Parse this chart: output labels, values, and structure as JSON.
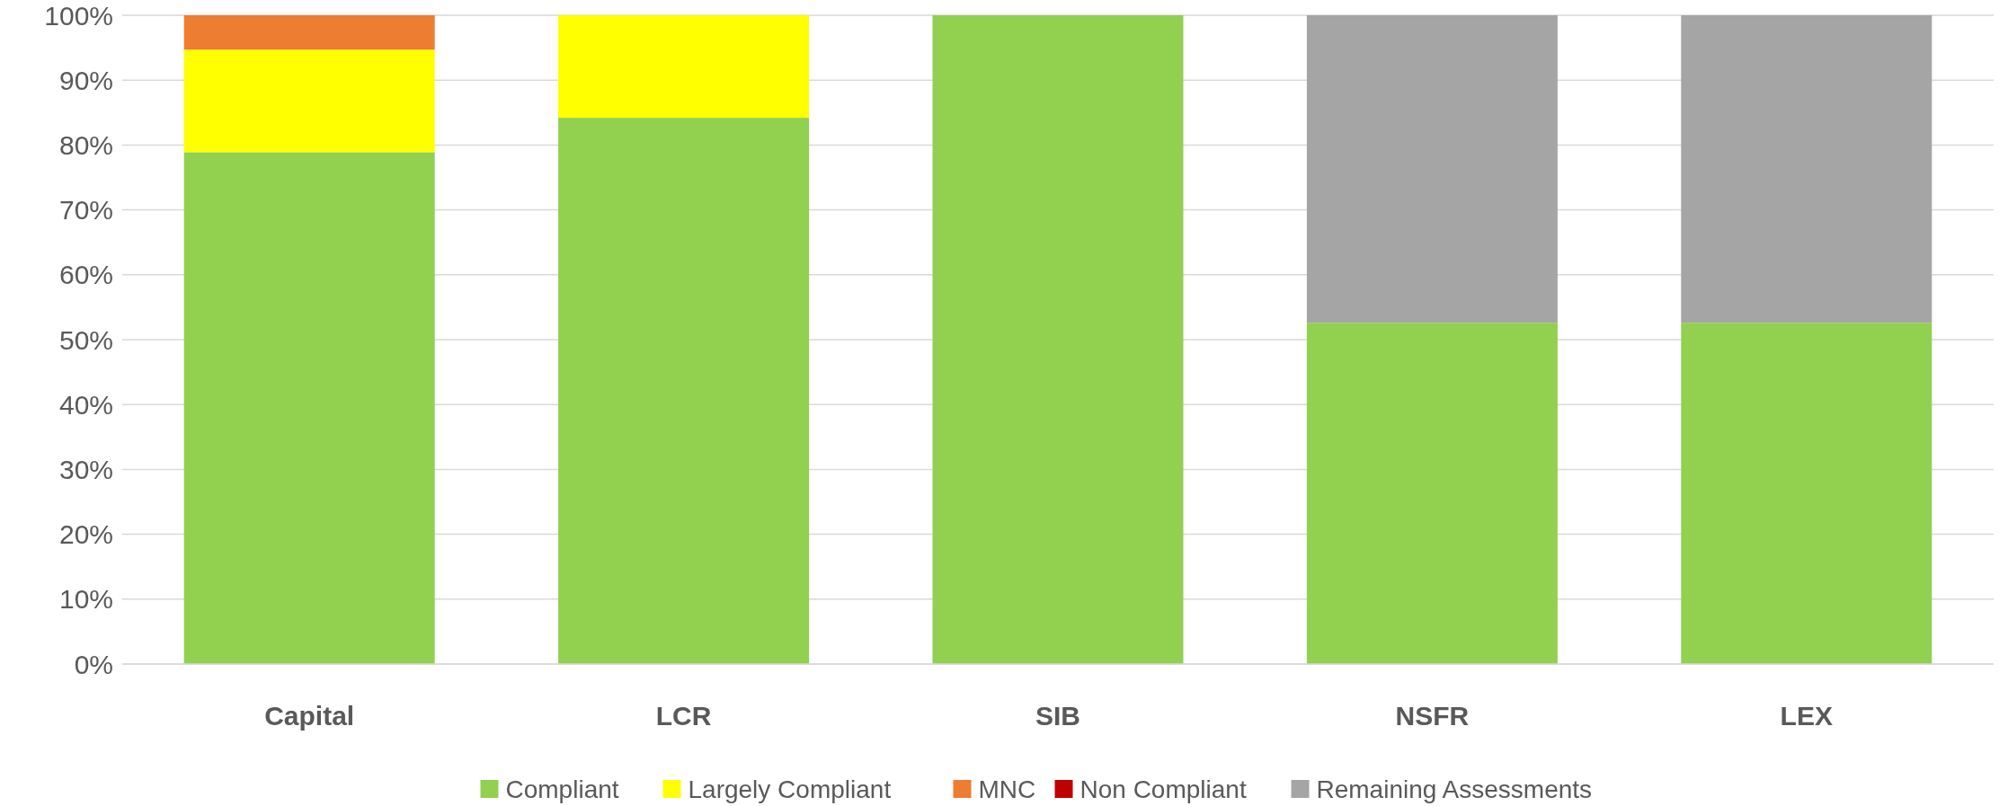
{
  "chart_data": {
    "type": "bar",
    "stacked": true,
    "categories": [
      "Capital",
      "LCR",
      "SIB",
      "NSFR",
      "LEX"
    ],
    "series": [
      {
        "name": "Compliant",
        "color": "#92d050",
        "values": [
          78.9,
          84.2,
          100,
          52.6,
          52.6
        ]
      },
      {
        "name": "Largely Compliant",
        "color": "#ffff00",
        "values": [
          15.8,
          15.8,
          0,
          0,
          0
        ]
      },
      {
        "name": "MNC",
        "color": "#ed7d31",
        "values": [
          5.3,
          0,
          0,
          0,
          0
        ]
      },
      {
        "name": "Non Compliant",
        "color": "#c00000",
        "values": [
          0,
          0,
          0,
          0,
          0
        ]
      },
      {
        "name": "Remaining Assessments",
        "color": "#a5a5a5",
        "values": [
          0,
          0,
          0,
          47.4,
          47.4
        ]
      }
    ],
    "ylim": [
      0,
      100
    ],
    "yticks": [
      {
        "value": 0,
        "label": "0%"
      },
      {
        "value": 10,
        "label": "10%"
      },
      {
        "value": 20,
        "label": "20%"
      },
      {
        "value": 30,
        "label": "30%"
      },
      {
        "value": 40,
        "label": "40%"
      },
      {
        "value": 50,
        "label": "50%"
      },
      {
        "value": 60,
        "label": "60%"
      },
      {
        "value": 70,
        "label": "70%"
      },
      {
        "value": 80,
        "label": "80%"
      },
      {
        "value": 90,
        "label": "90%"
      },
      {
        "value": 100,
        "label": "100%"
      }
    ],
    "grid": "y",
    "legend": "bottom"
  }
}
